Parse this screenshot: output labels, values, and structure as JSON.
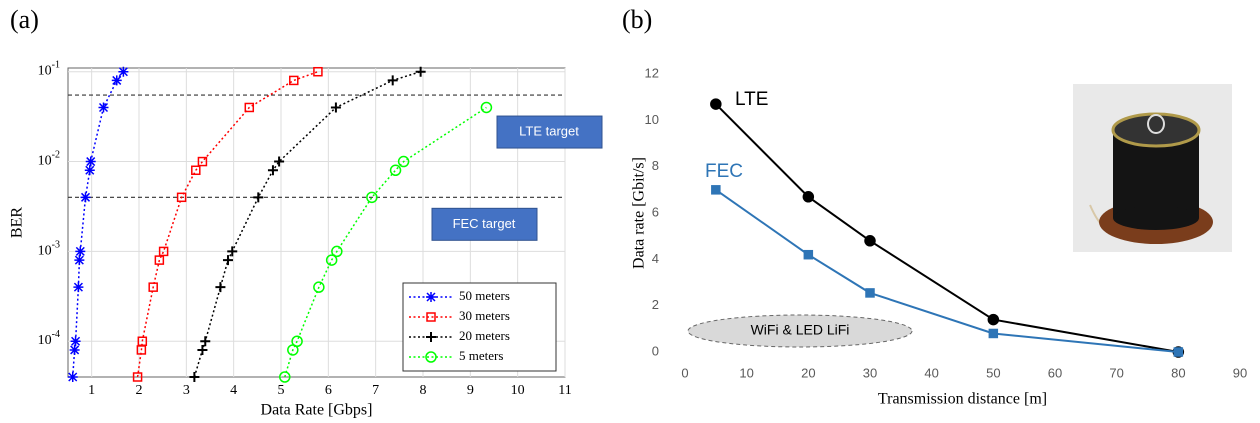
{
  "chart_data": [
    {
      "type": "line",
      "panel_label": "(a)",
      "x_label": "Data Rate [Gbps]",
      "y_label": "BER",
      "yscale": "log",
      "grid": true,
      "xlim": [
        0.5,
        11
      ],
      "ylim": [
        4e-05,
        0.11
      ],
      "xticks": [
        1,
        2,
        3,
        4,
        5,
        6,
        7,
        8,
        9,
        10,
        11
      ],
      "yticks": [
        {
          "value": 0.0001,
          "label": "10",
          "exponent": "-4"
        },
        {
          "value": 0.001,
          "label": "10",
          "exponent": "-3"
        },
        {
          "value": 0.01,
          "label": "10",
          "exponent": "-2"
        },
        {
          "value": 0.1,
          "label": "10",
          "exponent": "-1"
        }
      ],
      "legend": "lower right",
      "hlines": [
        {
          "value": 0.055,
          "label": "LTE target"
        },
        {
          "value": 0.004,
          "label": "FEC target"
        }
      ],
      "series": [
        {
          "name": "50 meters",
          "color": "#0000ff",
          "marker": "star",
          "x": [
            0.6,
            0.64,
            0.66,
            0.72,
            0.74,
            0.76,
            0.87,
            0.96,
            0.98,
            1.25,
            1.53,
            1.67
          ],
          "values": [
            4e-05,
            8e-05,
            0.0001,
            0.0004,
            0.0008,
            0.001,
            0.004,
            0.008,
            0.01,
            0.04,
            0.08,
            0.1
          ]
        },
        {
          "name": "30 meters",
          "color": "#ff0000",
          "marker": "square",
          "x": [
            1.97,
            2.05,
            2.07,
            2.3,
            2.43,
            2.52,
            2.9,
            3.2,
            3.34,
            4.33,
            5.27,
            5.78
          ],
          "values": [
            4e-05,
            8e-05,
            0.0001,
            0.0004,
            0.0008,
            0.001,
            0.004,
            0.008,
            0.01,
            0.04,
            0.08,
            0.1
          ]
        },
        {
          "name": "20 meters",
          "color": "#000000",
          "marker": "plus",
          "x": [
            3.17,
            3.34,
            3.4,
            3.72,
            3.88,
            3.97,
            4.52,
            4.83,
            4.96,
            6.16,
            7.36,
            7.95
          ],
          "values": [
            4e-05,
            8e-05,
            0.0001,
            0.0004,
            0.0008,
            0.001,
            0.004,
            0.008,
            0.01,
            0.04,
            0.08,
            0.1
          ]
        },
        {
          "name": "5 meters",
          "color": "#00ff00",
          "marker": "circle",
          "x": [
            5.08,
            5.25,
            5.34,
            5.8,
            6.07,
            6.18,
            6.92,
            7.42,
            7.59,
            9.34
          ],
          "values": [
            4e-05,
            8e-05,
            0.0001,
            0.0004,
            0.0008,
            0.001,
            0.004,
            0.008,
            0.01,
            0.04
          ]
        }
      ]
    },
    {
      "type": "line",
      "panel_label": "(b)",
      "x_label": "Transmission distance [m]",
      "y_label": "Data rate [Gbit/s]",
      "grid": false,
      "xlim": [
        0,
        90
      ],
      "ylim": [
        0,
        12
      ],
      "xticks": [
        0,
        10,
        20,
        30,
        40,
        50,
        60,
        70,
        80,
        90
      ],
      "yticks": [
        0,
        2,
        4,
        6,
        8,
        10,
        12
      ],
      "annotations": [
        {
          "text": "WiFi & LED LiFi"
        }
      ],
      "series": [
        {
          "name": "LTE",
          "color": "#000000",
          "marker": "circle",
          "x": [
            5,
            20,
            30,
            50,
            80
          ],
          "values": [
            10.7,
            6.7,
            4.8,
            1.4,
            0
          ]
        },
        {
          "name": "FEC",
          "color": "#2e75b6",
          "marker": "square",
          "x": [
            5,
            20,
            30,
            50,
            80
          ],
          "values": [
            7.0,
            4.2,
            2.55,
            0.8,
            0
          ]
        }
      ]
    }
  ]
}
